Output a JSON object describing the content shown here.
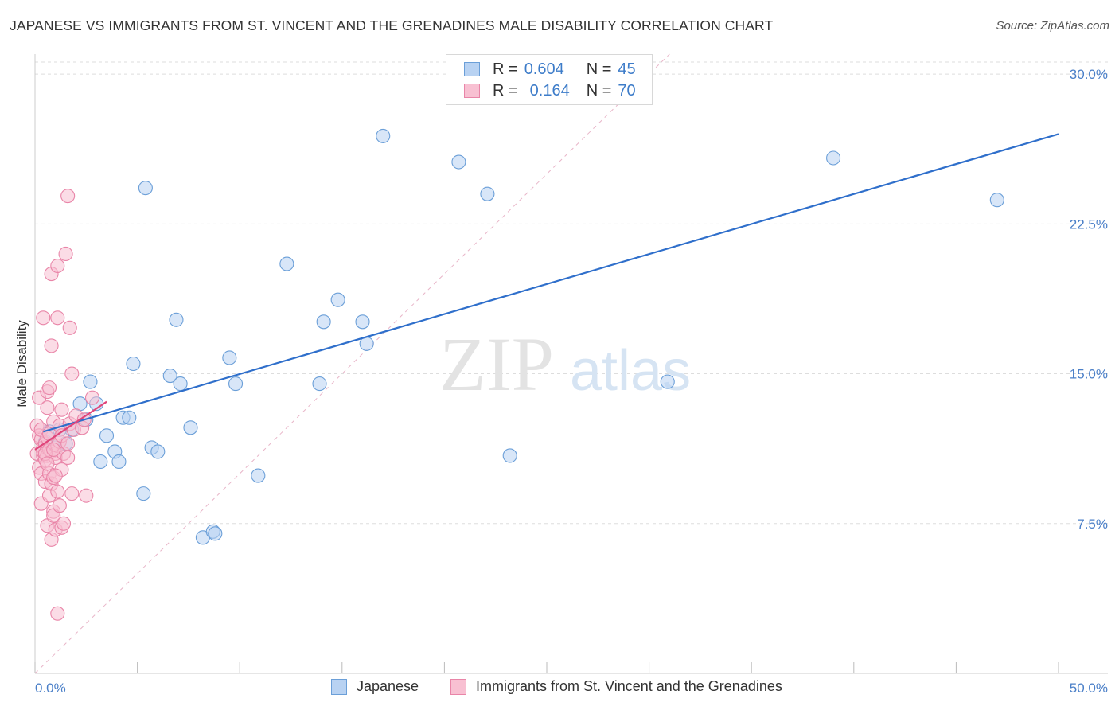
{
  "header": {
    "title": "JAPANESE VS IMMIGRANTS FROM ST. VINCENT AND THE GRENADINES MALE DISABILITY CORRELATION CHART",
    "source": "Source: ZipAtlas.com"
  },
  "watermark": {
    "zip": "ZIP",
    "atlas": "atlas"
  },
  "colors": {
    "blue_fill": "#b8d2f2",
    "blue_stroke": "#6b9fd8",
    "blue_line": "#2f6fcb",
    "pink_fill": "#f8c0d2",
    "pink_stroke": "#e985a8",
    "pink_line": "#e0457a",
    "tick_label": "#4a7fc8",
    "grid": "#dddddd"
  },
  "legend_top": [
    {
      "r_label": "R =",
      "r_value": "0.604",
      "n_label": "N =",
      "n_value": "45"
    },
    {
      "r_label": "R =",
      "r_value": "0.164",
      "n_label": "N =",
      "n_value": "70"
    }
  ],
  "chart_data": {
    "type": "scatter",
    "title": "JAPANESE VS IMMIGRANTS FROM ST. VINCENT AND THE GRENADINES MALE DISABILITY CORRELATION CHART",
    "xlabel": "",
    "ylabel": "Male Disability",
    "xlim": [
      0,
      50
    ],
    "ylim": [
      0,
      31
    ],
    "x_tick_labels": [
      "0.0%",
      "50.0%"
    ],
    "y_ticks": [
      7.5,
      15.0,
      22.5,
      30.0
    ],
    "y_tick_labels": [
      "7.5%",
      "15.0%",
      "22.5%",
      "30.0%"
    ],
    "grid": true,
    "legend_position": "bottom",
    "series": [
      {
        "name": "Japanese",
        "r": 0.604,
        "n": 45,
        "trend": {
          "x": [
            0.4,
            50.0
          ],
          "y": [
            12.1,
            27.0
          ]
        },
        "points": [
          [
            0.5,
            11.6
          ],
          [
            0.7,
            12.1
          ],
          [
            1.0,
            11.3
          ],
          [
            1.5,
            11.5
          ],
          [
            1.8,
            12.2
          ],
          [
            2.2,
            13.5
          ],
          [
            2.5,
            12.7
          ],
          [
            2.7,
            14.6
          ],
          [
            3.0,
            13.5
          ],
          [
            3.2,
            10.6
          ],
          [
            3.5,
            11.9
          ],
          [
            3.9,
            11.1
          ],
          [
            4.1,
            10.6
          ],
          [
            4.3,
            12.8
          ],
          [
            4.6,
            12.8
          ],
          [
            4.8,
            15.5
          ],
          [
            5.3,
            9.0
          ],
          [
            5.4,
            24.3
          ],
          [
            5.7,
            11.3
          ],
          [
            6.0,
            11.1
          ],
          [
            6.6,
            14.9
          ],
          [
            6.9,
            17.7
          ],
          [
            7.1,
            14.5
          ],
          [
            7.6,
            12.3
          ],
          [
            8.2,
            6.8
          ],
          [
            8.7,
            7.1
          ],
          [
            8.8,
            7.0
          ],
          [
            9.5,
            15.8
          ],
          [
            9.8,
            14.5
          ],
          [
            10.9,
            9.9
          ],
          [
            12.3,
            20.5
          ],
          [
            13.9,
            14.5
          ],
          [
            14.1,
            17.6
          ],
          [
            14.8,
            18.7
          ],
          [
            16.0,
            17.6
          ],
          [
            16.2,
            16.5
          ],
          [
            17.0,
            26.9
          ],
          [
            20.7,
            25.6
          ],
          [
            22.1,
            24.0
          ],
          [
            23.2,
            10.9
          ],
          [
            30.9,
            14.6
          ],
          [
            39.0,
            25.8
          ],
          [
            47.0,
            23.7
          ],
          [
            0.5,
            11.2
          ],
          [
            1.2,
            12.2
          ]
        ]
      },
      {
        "name": "Immigrants from St. Vincent and the Grenadines",
        "r": 0.164,
        "n": 70,
        "trend": {
          "x": [
            0.0,
            3.5
          ],
          "y": [
            11.2,
            13.6
          ]
        },
        "points": [
          [
            0.1,
            12.4
          ],
          [
            0.1,
            11.0
          ],
          [
            0.2,
            13.8
          ],
          [
            0.2,
            11.9
          ],
          [
            0.2,
            10.3
          ],
          [
            0.3,
            11.7
          ],
          [
            0.3,
            10.0
          ],
          [
            0.3,
            8.5
          ],
          [
            0.3,
            12.2
          ],
          [
            0.4,
            11.3
          ],
          [
            0.4,
            10.9
          ],
          [
            0.4,
            17.8
          ],
          [
            0.4,
            11.1
          ],
          [
            0.5,
            10.7
          ],
          [
            0.5,
            9.6
          ],
          [
            0.5,
            11.5
          ],
          [
            0.6,
            13.3
          ],
          [
            0.6,
            14.1
          ],
          [
            0.6,
            11.8
          ],
          [
            0.6,
            7.4
          ],
          [
            0.6,
            10.9
          ],
          [
            0.7,
            12.0
          ],
          [
            0.7,
            11.2
          ],
          [
            0.7,
            8.9
          ],
          [
            0.7,
            14.3
          ],
          [
            0.7,
            10.0
          ],
          [
            0.8,
            9.5
          ],
          [
            0.8,
            11.1
          ],
          [
            0.8,
            6.7
          ],
          [
            0.8,
            16.4
          ],
          [
            0.8,
            20.0
          ],
          [
            0.9,
            8.1
          ],
          [
            0.9,
            7.9
          ],
          [
            0.9,
            12.6
          ],
          [
            0.9,
            9.8
          ],
          [
            1.0,
            11.0
          ],
          [
            1.0,
            7.2
          ],
          [
            1.0,
            10.8
          ],
          [
            1.1,
            9.1
          ],
          [
            1.1,
            11.4
          ],
          [
            1.1,
            17.8
          ],
          [
            1.1,
            20.4
          ],
          [
            1.1,
            3.0
          ],
          [
            1.2,
            8.4
          ],
          [
            1.2,
            11.6
          ],
          [
            1.2,
            12.4
          ],
          [
            1.3,
            7.3
          ],
          [
            1.3,
            10.2
          ],
          [
            1.3,
            11.9
          ],
          [
            1.3,
            13.2
          ],
          [
            1.4,
            7.5
          ],
          [
            1.4,
            11.0
          ],
          [
            1.5,
            21.0
          ],
          [
            1.6,
            10.8
          ],
          [
            1.6,
            11.5
          ],
          [
            1.7,
            12.5
          ],
          [
            1.7,
            17.3
          ],
          [
            1.8,
            15.0
          ],
          [
            1.8,
            9.0
          ],
          [
            1.6,
            23.9
          ],
          [
            1.9,
            12.2
          ],
          [
            2.0,
            12.9
          ],
          [
            2.3,
            12.3
          ],
          [
            2.4,
            12.7
          ],
          [
            2.5,
            8.9
          ],
          [
            2.8,
            13.8
          ],
          [
            0.5,
            11.0
          ],
          [
            0.9,
            11.2
          ],
          [
            0.6,
            10.5
          ],
          [
            1.0,
            9.9
          ]
        ]
      }
    ]
  }
}
